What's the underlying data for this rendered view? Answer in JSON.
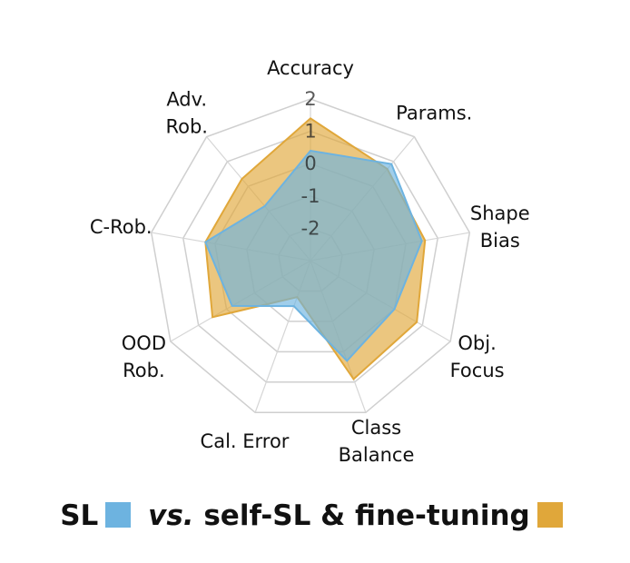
{
  "chart_data": {
    "type": "radar",
    "axes": [
      "Accuracy",
      "Params.",
      "Shape Bias",
      "Obj. Focus",
      "Class Balance",
      "Cal. Error",
      "OOD Rob.",
      "C-Rob.",
      "Adv. Rob."
    ],
    "axis_label_lines": [
      [
        "Accuracy"
      ],
      [
        "Params."
      ],
      [
        "Shape",
        "Bias"
      ],
      [
        "Obj.",
        "Focus"
      ],
      [
        "Class",
        "Balance"
      ],
      [
        "Cal.  Error"
      ],
      [
        "OOD",
        "Rob."
      ],
      [
        "C-Rob."
      ],
      [
        "Adv.",
        "Rob."
      ]
    ],
    "ticks": [
      -2,
      -1,
      0,
      1,
      2
    ],
    "tick_labels": [
      "-2",
      "-1",
      "0",
      "1",
      "2"
    ],
    "range": [
      -3,
      2
    ],
    "series": [
      {
        "name": "self-SL & fine-tuning",
        "color": "#E0A73A",
        "values": [
          1.4,
          0.7,
          0.6,
          0.8,
          0.9,
          -1.8,
          0.5,
          0.3,
          0.3
        ]
      },
      {
        "name": "SL",
        "color": "#6DB3E0",
        "values": [
          0.4,
          0.9,
          0.5,
          0.0,
          0.3,
          -1.5,
          -0.2,
          0.3,
          -0.8
        ]
      }
    ],
    "legend": {
      "left_label": "SL",
      "middle_label": "vs.",
      "right_label": "self-SL & fine-tuning",
      "position": "bottom"
    }
  }
}
